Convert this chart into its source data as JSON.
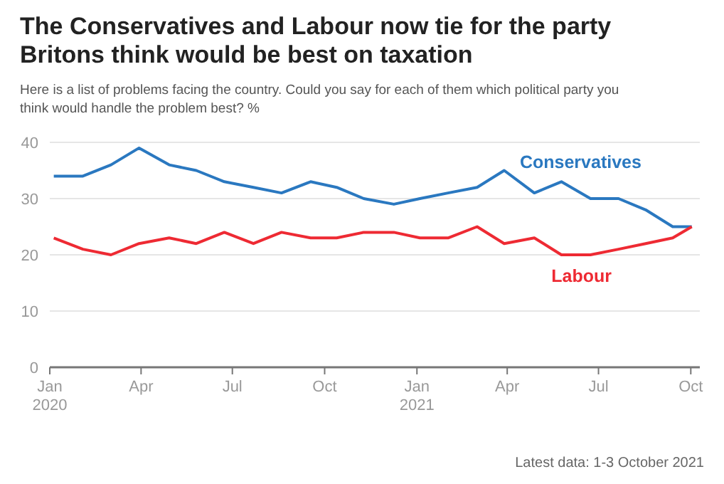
{
  "chart_data": {
    "type": "line",
    "title": "The Conservatives and Labour now tie for the party Britons think would be best on taxation",
    "subtitle": "Here is a list of problems facing the country. Could you say for each of them which political party you think would handle the problem best? %",
    "x": [
      "2020-01-05",
      "2020-02-03",
      "2020-03-02",
      "2020-03-30",
      "2020-04-29",
      "2020-05-26",
      "2020-06-23",
      "2020-07-22",
      "2020-08-19",
      "2020-09-17",
      "2020-10-13",
      "2020-11-09",
      "2020-12-09",
      "2021-01-04",
      "2021-02-01",
      "2021-03-02",
      "2021-03-29",
      "2021-04-28",
      "2021-05-25",
      "2021-06-23",
      "2021-07-21",
      "2021-08-17",
      "2021-09-13",
      "2021-10-02"
    ],
    "series": [
      {
        "name": "Conservatives",
        "color": "#2a78c0",
        "values": [
          34,
          34,
          36,
          39,
          36,
          35,
          33,
          32,
          31,
          33,
          32,
          30,
          29,
          30,
          31,
          32,
          35,
          31,
          33,
          30,
          30,
          28,
          25,
          25
        ]
      },
      {
        "name": "Labour",
        "color": "#ee2a33",
        "values": [
          23,
          21,
          20,
          22,
          23,
          22,
          24,
          22,
          24,
          23,
          23,
          24,
          24,
          23,
          23,
          25,
          22,
          23,
          20,
          20,
          21,
          22,
          23,
          25
        ]
      }
    ],
    "xlim": [
      "2020-01-01",
      "2021-10-10"
    ],
    "xticks": [
      {
        "value": "2020-01-01",
        "label": "Jan 2020"
      },
      {
        "value": "2020-04-01",
        "label": "Apr"
      },
      {
        "value": "2020-07-01",
        "label": "Jul"
      },
      {
        "value": "2020-10-01",
        "label": "Oct"
      },
      {
        "value": "2021-01-01",
        "label": "Jan 2021"
      },
      {
        "value": "2021-04-01",
        "label": "Apr"
      },
      {
        "value": "2021-07-01",
        "label": "Jul"
      },
      {
        "value": "2021-10-01",
        "label": "Oct"
      }
    ],
    "ylim": [
      0,
      40
    ],
    "yticks": [
      0,
      10,
      20,
      30,
      40
    ],
    "grid": "y",
    "legend": false,
    "marker": "none",
    "line_style": "solid",
    "annotations": [
      "Latest data: 1-3 October 2021"
    ]
  }
}
